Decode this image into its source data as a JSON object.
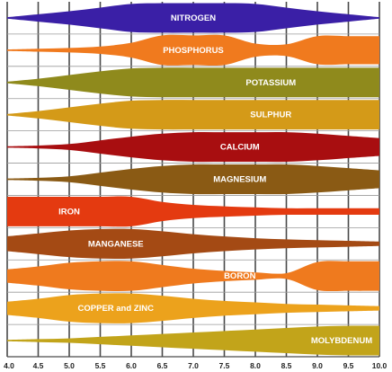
{
  "chart_data": {
    "type": "area",
    "title": "",
    "xlabel": "",
    "ylabel": "",
    "x_ticks": [
      "4.0",
      "4.5",
      "5.0",
      "5.5",
      "6.0",
      "6.5",
      "7.0",
      "7.5",
      "8.0",
      "8.5",
      "9.0",
      "9.5",
      "10.0"
    ],
    "xlim": [
      4.0,
      10.0
    ],
    "grid": true,
    "series": [
      {
        "name": "NITROGEN",
        "color": "#3a1fa6",
        "x": [
          4.0,
          4.5,
          5.0,
          5.5,
          6.0,
          6.5,
          7.0,
          7.5,
          8.0,
          8.5,
          9.0,
          9.5,
          10.0
        ],
        "values": [
          0.05,
          0.25,
          0.45,
          0.7,
          0.95,
          1.0,
          1.0,
          1.0,
          0.95,
          0.7,
          0.45,
          0.25,
          0.05
        ]
      },
      {
        "name": "PHOSPHORUS",
        "color": "#f07a1e",
        "x": [
          4.0,
          4.5,
          5.0,
          5.5,
          6.0,
          6.5,
          7.0,
          7.5,
          8.0,
          8.5,
          9.0,
          9.5,
          10.0
        ],
        "values": [
          0.05,
          0.1,
          0.15,
          0.25,
          0.5,
          1.0,
          1.0,
          1.0,
          0.45,
          0.4,
          0.95,
          0.95,
          0.95
        ]
      },
      {
        "name": "POTASSIUM",
        "color": "#8f8a1c",
        "x": [
          4.0,
          4.5,
          5.0,
          5.5,
          6.0,
          6.5,
          7.0,
          7.5,
          8.0,
          8.5,
          9.0,
          9.5,
          10.0
        ],
        "values": [
          0.05,
          0.25,
          0.5,
          0.75,
          0.95,
          1.0,
          1.0,
          1.0,
          1.0,
          1.0,
          1.0,
          1.0,
          1.0
        ]
      },
      {
        "name": "SULPHUR",
        "color": "#d49a18",
        "x": [
          4.0,
          4.5,
          5.0,
          5.5,
          6.0,
          6.5,
          7.0,
          7.5,
          8.0,
          8.5,
          9.0,
          9.5,
          10.0
        ],
        "values": [
          0.05,
          0.25,
          0.5,
          0.75,
          0.95,
          1.0,
          1.0,
          1.0,
          1.0,
          1.0,
          1.0,
          1.0,
          1.0
        ]
      },
      {
        "name": "CALCIUM",
        "color": "#a80e10",
        "x": [
          4.0,
          4.5,
          5.0,
          5.5,
          6.0,
          6.5,
          7.0,
          7.5,
          8.0,
          8.5,
          9.0,
          9.5,
          10.0
        ],
        "values": [
          0.05,
          0.1,
          0.2,
          0.45,
          0.7,
          0.9,
          1.0,
          1.0,
          1.0,
          1.0,
          0.9,
          0.75,
          0.6
        ]
      },
      {
        "name": "MAGNESIUM",
        "color": "#8a5a14",
        "x": [
          4.0,
          4.5,
          5.0,
          5.5,
          6.0,
          6.5,
          7.0,
          7.5,
          8.0,
          8.5,
          9.0,
          9.5,
          10.0
        ],
        "values": [
          0.05,
          0.1,
          0.2,
          0.45,
          0.7,
          0.9,
          1.0,
          1.0,
          1.0,
          1.0,
          0.9,
          0.75,
          0.6
        ]
      },
      {
        "name": "IRON",
        "color": "#e43a10",
        "x": [
          4.0,
          4.5,
          5.0,
          5.5,
          6.0,
          6.5,
          7.0,
          7.5,
          8.0,
          8.5,
          9.0,
          9.5,
          10.0
        ],
        "values": [
          1.0,
          1.0,
          1.0,
          1.0,
          1.0,
          0.65,
          0.45,
          0.35,
          0.28,
          0.22,
          0.22,
          0.22,
          0.22
        ]
      },
      {
        "name": "MANGANESE",
        "color": "#a44a14",
        "x": [
          4.0,
          4.5,
          5.0,
          5.5,
          6.0,
          6.5,
          7.0,
          7.5,
          8.0,
          8.5,
          9.0,
          9.5,
          10.0
        ],
        "values": [
          0.5,
          0.7,
          0.9,
          1.0,
          1.0,
          0.85,
          0.65,
          0.5,
          0.38,
          0.3,
          0.25,
          0.2,
          0.15
        ]
      },
      {
        "name": "BORON",
        "color": "#ef7a1e",
        "x": [
          4.0,
          4.5,
          5.0,
          5.5,
          6.0,
          6.5,
          7.0,
          7.5,
          8.0,
          8.5,
          9.0,
          9.5,
          10.0
        ],
        "values": [
          0.45,
          0.65,
          0.9,
          1.0,
          1.0,
          0.75,
          0.5,
          0.35,
          0.25,
          0.2,
          0.95,
          1.0,
          1.0
        ]
      },
      {
        "name": "COPPER and ZINC",
        "color": "#eca21c",
        "x": [
          4.0,
          4.5,
          5.0,
          5.5,
          6.0,
          6.5,
          7.0,
          7.5,
          8.0,
          8.5,
          9.0,
          9.5,
          10.0
        ],
        "values": [
          0.45,
          0.65,
          0.9,
          1.0,
          1.0,
          0.85,
          0.65,
          0.5,
          0.4,
          0.3,
          0.25,
          0.2,
          0.15
        ]
      },
      {
        "name": "MOLYBDENUM",
        "color": "#c2a41a",
        "x": [
          4.0,
          4.5,
          5.0,
          5.5,
          6.0,
          6.5,
          7.0,
          7.5,
          8.0,
          8.5,
          9.0,
          9.5,
          10.0
        ],
        "values": [
          0.05,
          0.1,
          0.15,
          0.25,
          0.35,
          0.45,
          0.55,
          0.65,
          0.75,
          0.85,
          0.95,
          1.0,
          1.0
        ]
      }
    ]
  }
}
